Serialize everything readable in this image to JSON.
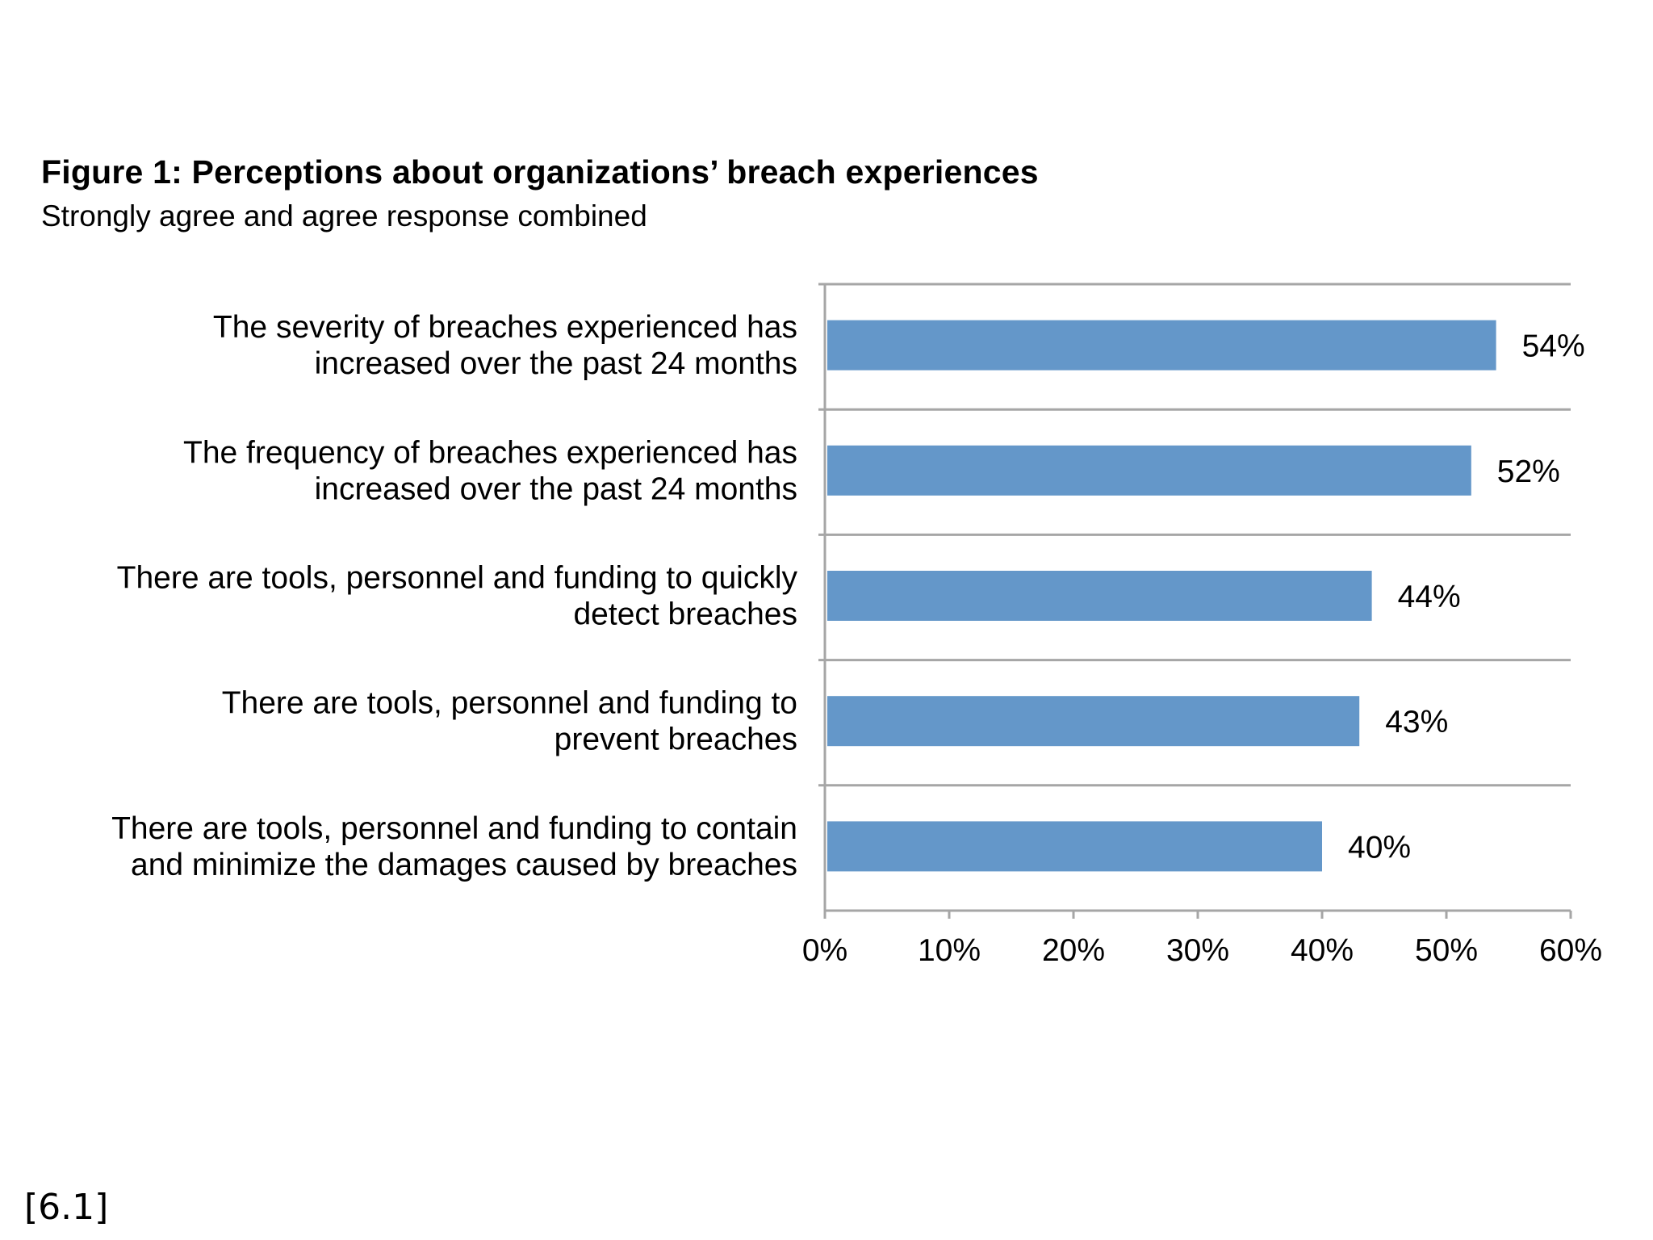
{
  "footnote": "[6.1]",
  "chart_data": {
    "type": "bar",
    "orientation": "horizontal",
    "title": "Figure 1: Perceptions about organizations’ breach experiences",
    "subtitle": "Strongly agree and agree response combined",
    "categories": [
      [
        "The severity of breaches experienced has",
        "increased over the past 24 months"
      ],
      [
        "The frequency of breaches experienced has",
        "increased over the past 24 months"
      ],
      [
        "There are tools, personnel and funding to quickly",
        "detect breaches"
      ],
      [
        "There are tools, personnel and funding to",
        "prevent breaches"
      ],
      [
        "There are tools, personnel and funding to contain",
        "and minimize the damages caused by breaches"
      ]
    ],
    "values": [
      54,
      52,
      44,
      43,
      40
    ],
    "value_labels": [
      "54%",
      "52%",
      "44%",
      "43%",
      "40%"
    ],
    "xlim": [
      0,
      60
    ],
    "xticks": [
      0,
      10,
      20,
      30,
      40,
      50,
      60
    ],
    "xtick_labels": [
      "0%",
      "10%",
      "20%",
      "30%",
      "40%",
      "50%",
      "60%"
    ],
    "bar_color": "#6497c9",
    "grid": true
  }
}
